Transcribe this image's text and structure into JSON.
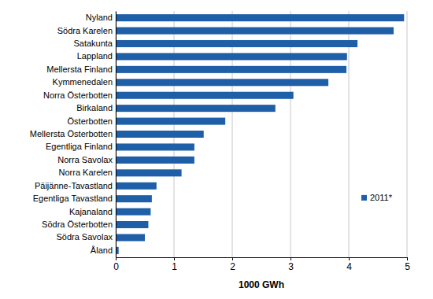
{
  "chart_data": {
    "type": "bar",
    "orientation": "horizontal",
    "categories": [
      "Nyland",
      "Södra Karelen",
      "Satakunta",
      "Lappland",
      "Mellersta Finland",
      "Kymmenedalen",
      "Norra Österbotten",
      "Birkaland",
      "Österbotten",
      "Mellersta Österbotten",
      "Egentliga Finland",
      "Norra Savolax",
      "Norra Karelen",
      "Päijänne-Tavastland",
      "Egentliga Tavastland",
      "Kajanaland",
      "Södra Österbotten",
      "Södra Savolax",
      "Åland"
    ],
    "series": [
      {
        "name": "2011*",
        "color": "#1f5fa8",
        "values": [
          4.95,
          4.77,
          4.15,
          3.97,
          3.96,
          3.65,
          3.05,
          2.74,
          1.88,
          1.51,
          1.35,
          1.35,
          1.13,
          0.7,
          0.62,
          0.6,
          0.56,
          0.5,
          0.05
        ]
      }
    ],
    "xlabel": "1000 GWh",
    "xlim": [
      0,
      5
    ],
    "xticks": [
      0,
      1,
      2,
      3,
      4,
      5
    ],
    "grid": true,
    "legend": "lower right"
  }
}
